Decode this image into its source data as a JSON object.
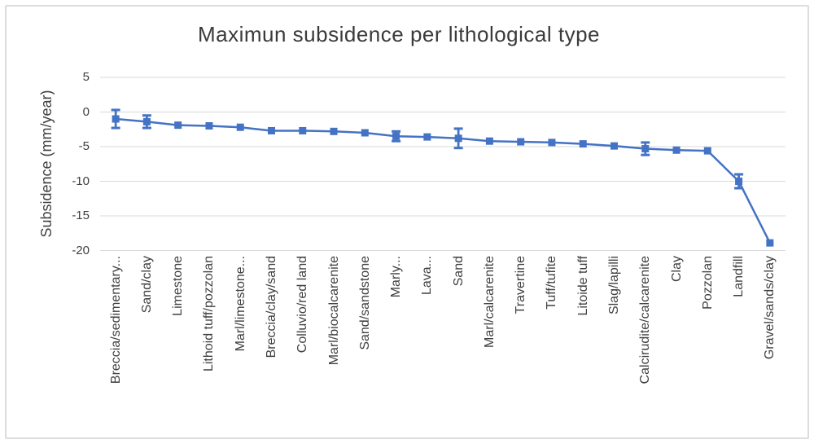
{
  "frame": {
    "background": "#ffffff",
    "border_color": "#dcdcdc"
  },
  "chart_data": {
    "type": "line",
    "title": "Maximun subsidence per lithological type",
    "ylabel": "Subsidence (mm/year)",
    "xlabel": "",
    "categories": [
      "Breccia/sedimentary...",
      "Sand/clay",
      "Limestone",
      "Lithoid tuff/pozzolan",
      "Marl/limestone...",
      "Breccia/clay/sand",
      "Colluvio/red land",
      "Marl/biocalcarenite",
      "Sand/sandstone",
      "Marly...",
      "Lava...",
      "Sand",
      "Marl/calcarenite",
      "Travertine",
      "Tuff/tufite",
      "Litoide tuff",
      "Slag/lapilli",
      "Calcirudite/calcarenite",
      "Clay",
      "Pozzolan",
      "Landfill",
      "Gravel/sands/clay"
    ],
    "values": [
      -1.0,
      -1.4,
      -1.9,
      -2.0,
      -2.2,
      -2.7,
      -2.7,
      -2.8,
      -3.0,
      -3.5,
      -3.6,
      -3.8,
      -4.2,
      -4.3,
      -4.4,
      -4.6,
      -4.9,
      -5.3,
      -5.5,
      -5.6,
      -10.0,
      -18.9
    ],
    "error_bars": [
      1.3,
      0.9,
      0,
      0,
      0,
      0,
      0,
      0,
      0,
      0.7,
      0,
      1.4,
      0,
      0,
      0,
      0,
      0,
      0.9,
      0,
      0,
      1.0,
      0
    ],
    "yticks": [
      5,
      0,
      -5,
      -10,
      -15,
      -20
    ],
    "ylim": [
      -20,
      5
    ],
    "grid": "horizontal",
    "legend": "none",
    "marker": "square",
    "line_color": "#4472C4",
    "gridline_color": "#D9D9D9",
    "text_color": "#404040"
  }
}
